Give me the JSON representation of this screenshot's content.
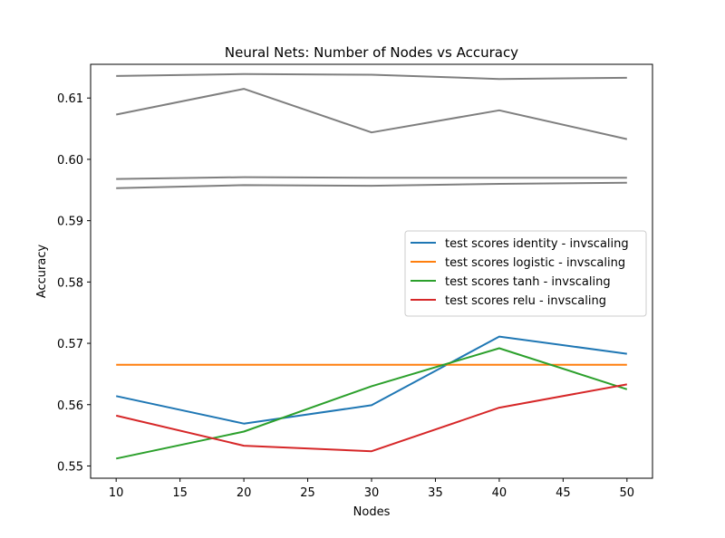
{
  "chart_data": {
    "type": "line",
    "title": "Neural Nets: Number of Nodes vs Accuracy",
    "xlabel": "Nodes",
    "ylabel": "Accuracy",
    "x": [
      10,
      20,
      30,
      40,
      50
    ],
    "xlim": [
      8,
      52
    ],
    "ylim": [
      0.548,
      0.6155
    ],
    "xticks": [
      10,
      15,
      20,
      25,
      30,
      35,
      40,
      45,
      50
    ],
    "yticks": [
      0.55,
      0.56,
      0.57,
      0.58,
      0.59,
      0.6,
      0.61
    ],
    "grid": false,
    "legend_position": "center-right",
    "series": [
      {
        "key": "gray-1",
        "name": "",
        "color": "#7f7f7f",
        "values": [
          0.6136,
          0.6139,
          0.6138,
          0.6131,
          0.6133
        ]
      },
      {
        "key": "gray-2",
        "name": "",
        "color": "#7f7f7f",
        "values": [
          0.6073,
          0.6115,
          0.6044,
          0.608,
          0.6033
        ]
      },
      {
        "key": "gray-3",
        "name": "",
        "color": "#7f7f7f",
        "values": [
          0.5968,
          0.5971,
          0.597,
          0.597,
          0.597
        ]
      },
      {
        "key": "gray-4",
        "name": "",
        "color": "#7f7f7f",
        "values": [
          0.5953,
          0.5958,
          0.5957,
          0.596,
          0.5962
        ]
      },
      {
        "key": "identity",
        "name": "test scores identity - invscaling",
        "color": "#1f77b4",
        "values": [
          0.5614,
          0.5569,
          0.5599,
          0.5711,
          0.5683
        ]
      },
      {
        "key": "logistic",
        "name": "test scores logistic - invscaling",
        "color": "#ff7f0e",
        "values": [
          0.5665,
          0.5665,
          0.5665,
          0.5665,
          0.5665
        ]
      },
      {
        "key": "tanh",
        "name": "test scores tanh - invscaling",
        "color": "#2ca02c",
        "values": [
          0.5512,
          0.5556,
          0.563,
          0.5692,
          0.5625
        ]
      },
      {
        "key": "relu",
        "name": "test scores relu - invscaling",
        "color": "#d62728",
        "values": [
          0.5582,
          0.5533,
          0.5524,
          0.5595,
          0.5633
        ]
      }
    ]
  }
}
